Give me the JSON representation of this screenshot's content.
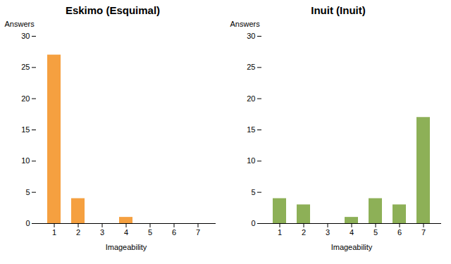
{
  "chart_data": [
    {
      "type": "bar",
      "title": "Eskimo (Esquimal)",
      "categories": [
        1,
        2,
        3,
        4,
        5,
        6,
        7
      ],
      "values": [
        27,
        4,
        0,
        1,
        0,
        0,
        0
      ],
      "color": "#F5A040",
      "xlabel": "Imageability",
      "ylabel": "Answers",
      "ylim": [
        0,
        30
      ],
      "yticks": [
        0,
        5,
        10,
        15,
        20,
        25,
        30
      ],
      "grid": false
    },
    {
      "type": "bar",
      "title": "Inuit (Inuit)",
      "categories": [
        1,
        2,
        3,
        4,
        5,
        6,
        7
      ],
      "values": [
        4,
        3,
        0,
        1,
        4,
        3,
        17
      ],
      "color": "#8DB057",
      "xlabel": "Imageability",
      "ylabel": "Answers",
      "ylim": [
        0,
        30
      ],
      "yticks": [
        0,
        5,
        10,
        15,
        20,
        25,
        30
      ],
      "grid": false
    }
  ]
}
